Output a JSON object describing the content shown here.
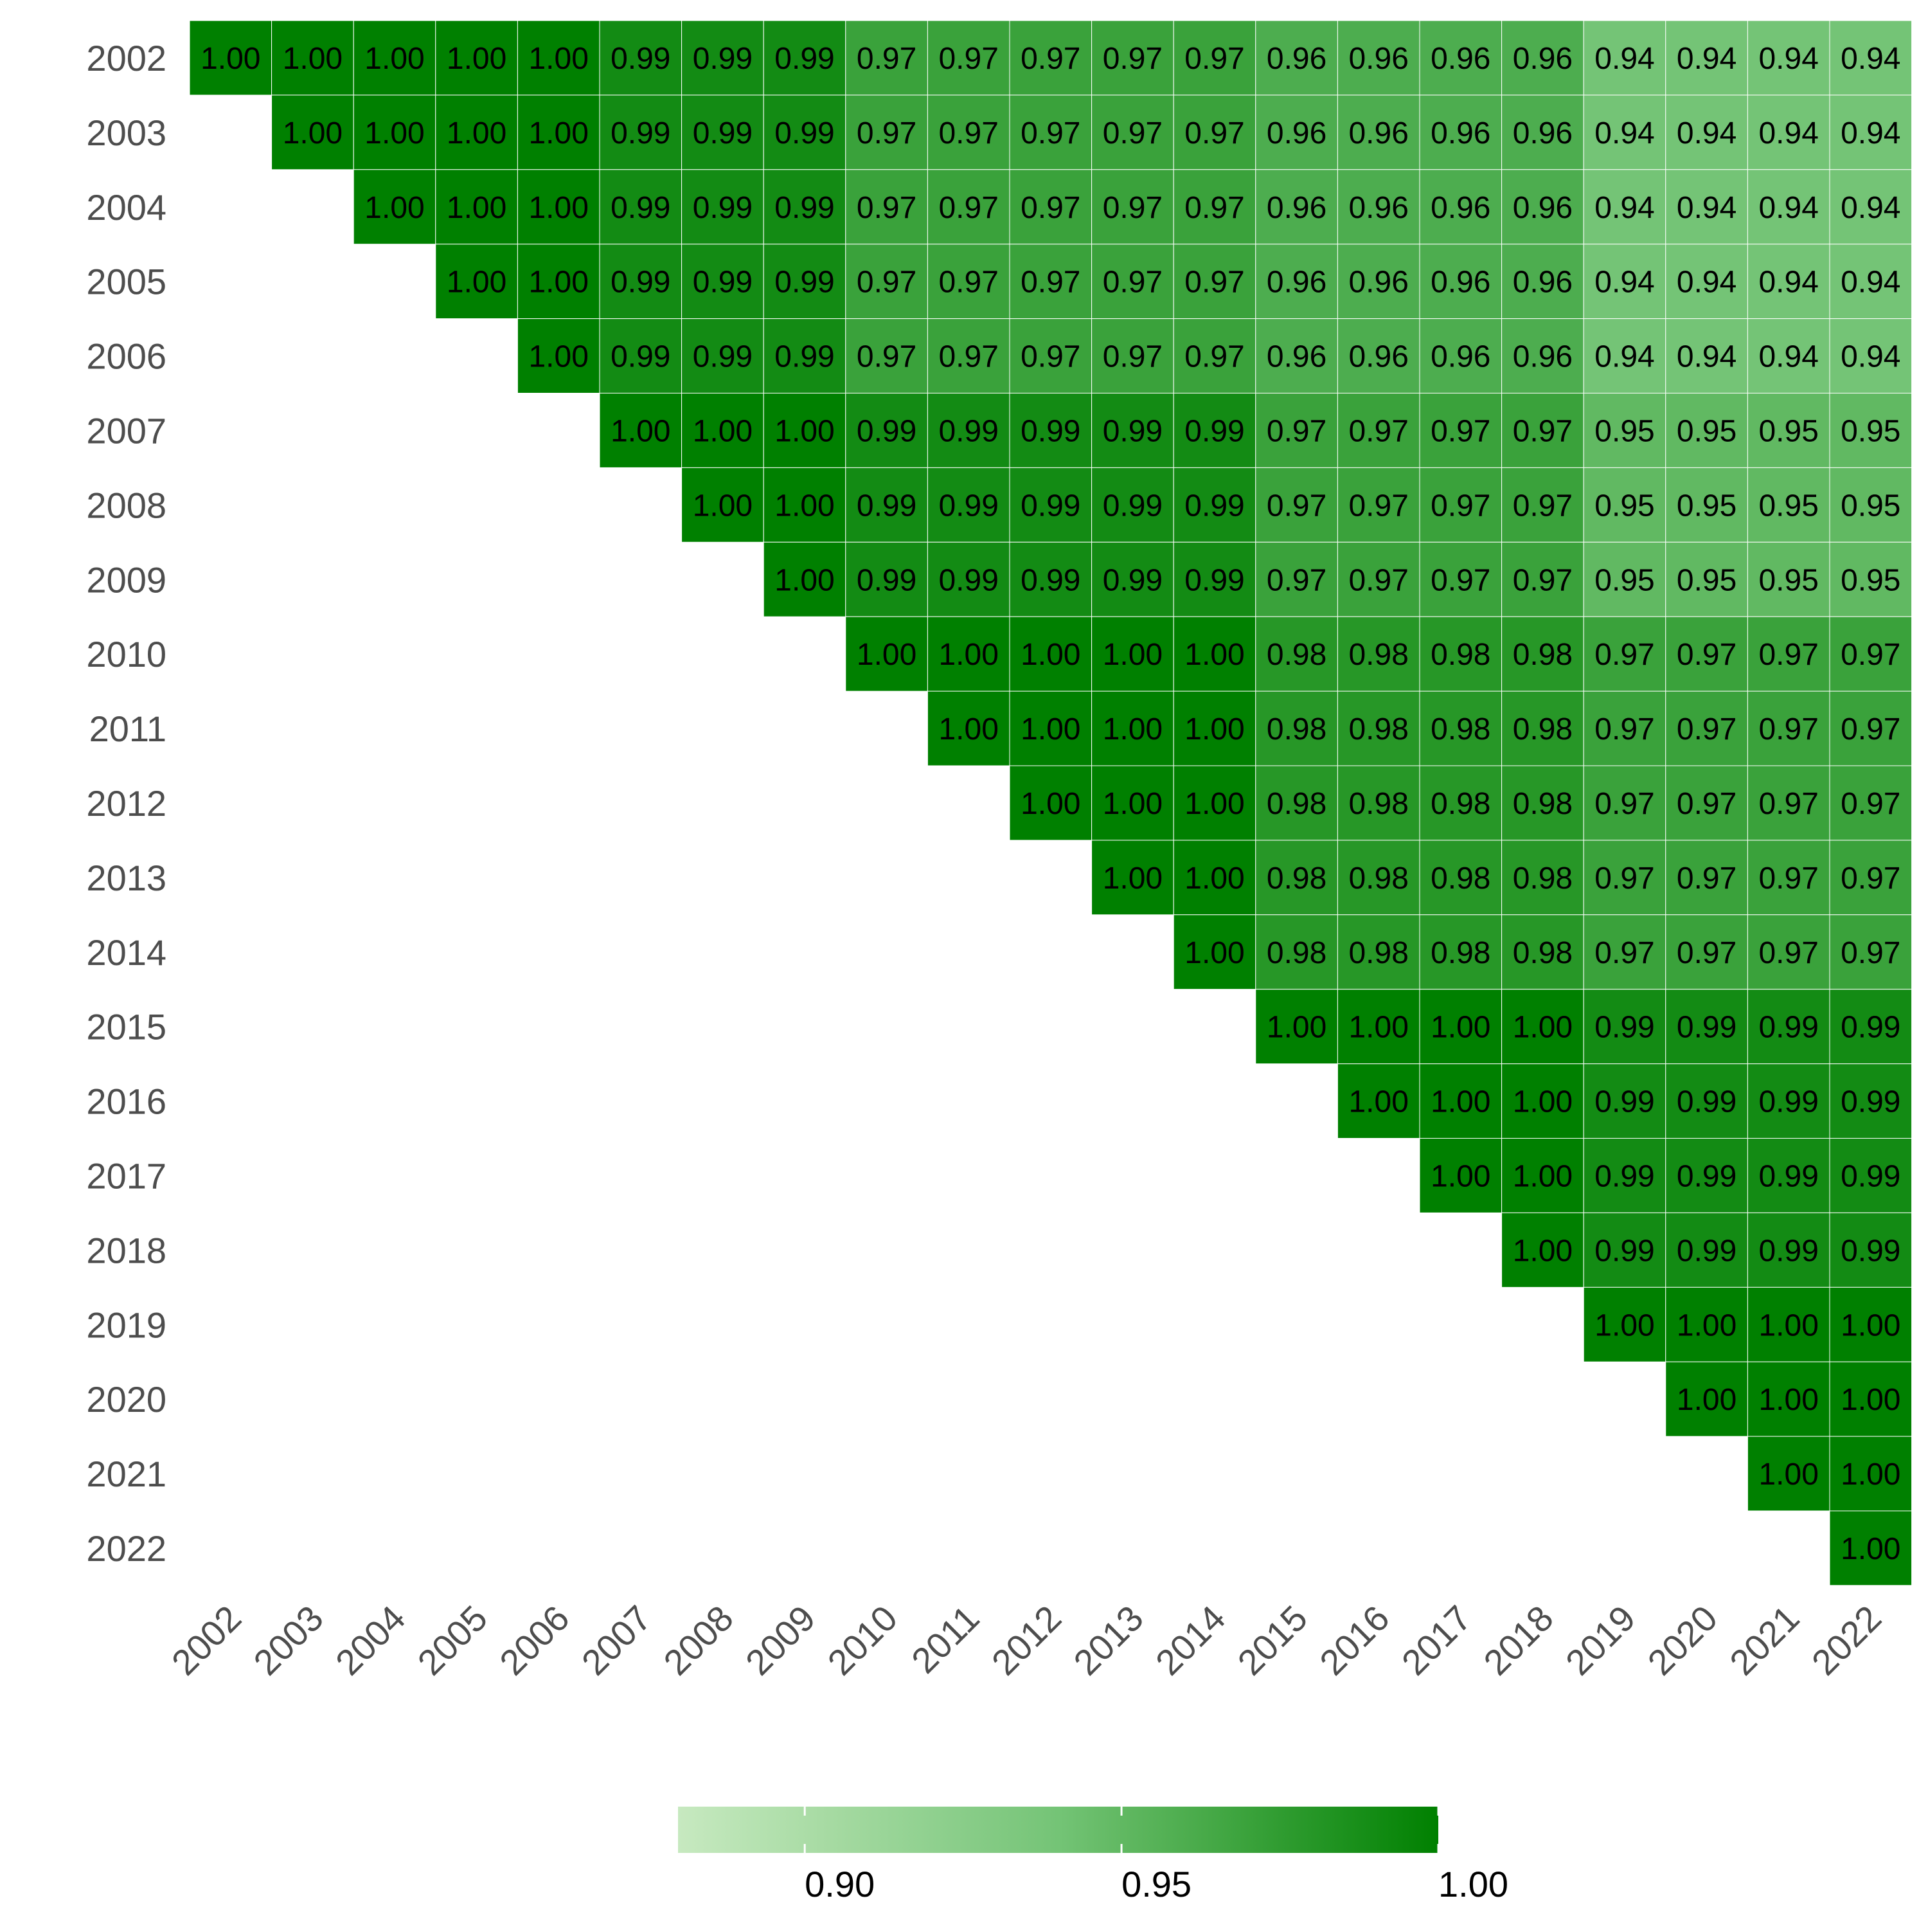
{
  "chart_data": {
    "type": "heatmap",
    "title": "",
    "xlabel": "",
    "ylabel": "",
    "layout": "upper-triangle",
    "rows": [
      "2002",
      "2003",
      "2004",
      "2005",
      "2006",
      "2007",
      "2008",
      "2009",
      "2010",
      "2011",
      "2012",
      "2013",
      "2014",
      "2015",
      "2016",
      "2017",
      "2018",
      "2019",
      "2020",
      "2021",
      "2022"
    ],
    "columns": [
      "2002",
      "2003",
      "2004",
      "2005",
      "2006",
      "2007",
      "2008",
      "2009",
      "2010",
      "2011",
      "2012",
      "2013",
      "2014",
      "2015",
      "2016",
      "2017",
      "2018",
      "2019",
      "2020",
      "2021",
      "2022"
    ],
    "values": [
      [
        "1.00",
        "1.00",
        "1.00",
        "1.00",
        "1.00",
        "0.99",
        "0.99",
        "0.99",
        "0.97",
        "0.97",
        "0.97",
        "0.97",
        "0.97",
        "0.96",
        "0.96",
        "0.96",
        "0.96",
        "0.94",
        "0.94",
        "0.94",
        "0.94"
      ],
      [
        "1.00",
        "1.00",
        "1.00",
        "1.00",
        "0.99",
        "0.99",
        "0.99",
        "0.97",
        "0.97",
        "0.97",
        "0.97",
        "0.97",
        "0.96",
        "0.96",
        "0.96",
        "0.96",
        "0.94",
        "0.94",
        "0.94",
        "0.94"
      ],
      [
        "1.00",
        "1.00",
        "1.00",
        "0.99",
        "0.99",
        "0.99",
        "0.97",
        "0.97",
        "0.97",
        "0.97",
        "0.97",
        "0.96",
        "0.96",
        "0.96",
        "0.96",
        "0.94",
        "0.94",
        "0.94",
        "0.94"
      ],
      [
        "1.00",
        "1.00",
        "0.99",
        "0.99",
        "0.99",
        "0.97",
        "0.97",
        "0.97",
        "0.97",
        "0.97",
        "0.96",
        "0.96",
        "0.96",
        "0.96",
        "0.94",
        "0.94",
        "0.94",
        "0.94"
      ],
      [
        "1.00",
        "0.99",
        "0.99",
        "0.99",
        "0.97",
        "0.97",
        "0.97",
        "0.97",
        "0.97",
        "0.96",
        "0.96",
        "0.96",
        "0.96",
        "0.94",
        "0.94",
        "0.94",
        "0.94"
      ],
      [
        "1.00",
        "1.00",
        "1.00",
        "0.99",
        "0.99",
        "0.99",
        "0.99",
        "0.99",
        "0.97",
        "0.97",
        "0.97",
        "0.97",
        "0.95",
        "0.95",
        "0.95",
        "0.95"
      ],
      [
        "1.00",
        "1.00",
        "0.99",
        "0.99",
        "0.99",
        "0.99",
        "0.99",
        "0.97",
        "0.97",
        "0.97",
        "0.97",
        "0.95",
        "0.95",
        "0.95",
        "0.95"
      ],
      [
        "1.00",
        "0.99",
        "0.99",
        "0.99",
        "0.99",
        "0.99",
        "0.97",
        "0.97",
        "0.97",
        "0.97",
        "0.95",
        "0.95",
        "0.95",
        "0.95"
      ],
      [
        "1.00",
        "1.00",
        "1.00",
        "1.00",
        "1.00",
        "0.98",
        "0.98",
        "0.98",
        "0.98",
        "0.97",
        "0.97",
        "0.97",
        "0.97"
      ],
      [
        "1.00",
        "1.00",
        "1.00",
        "1.00",
        "0.98",
        "0.98",
        "0.98",
        "0.98",
        "0.97",
        "0.97",
        "0.97",
        "0.97"
      ],
      [
        "1.00",
        "1.00",
        "1.00",
        "0.98",
        "0.98",
        "0.98",
        "0.98",
        "0.97",
        "0.97",
        "0.97",
        "0.97"
      ],
      [
        "1.00",
        "1.00",
        "0.98",
        "0.98",
        "0.98",
        "0.98",
        "0.97",
        "0.97",
        "0.97",
        "0.97"
      ],
      [
        "1.00",
        "0.98",
        "0.98",
        "0.98",
        "0.98",
        "0.97",
        "0.97",
        "0.97",
        "0.97"
      ],
      [
        "1.00",
        "1.00",
        "1.00",
        "1.00",
        "0.99",
        "0.99",
        "0.99",
        "0.99"
      ],
      [
        "1.00",
        "1.00",
        "1.00",
        "0.99",
        "0.99",
        "0.99",
        "0.99"
      ],
      [
        "1.00",
        "1.00",
        "0.99",
        "0.99",
        "0.99",
        "0.99"
      ],
      [
        "1.00",
        "0.99",
        "0.99",
        "0.99",
        "0.99"
      ],
      [
        "1.00",
        "1.00",
        "1.00",
        "1.00"
      ],
      [
        "1.00",
        "1.00",
        "1.00"
      ],
      [
        "1.00",
        "1.00"
      ],
      [
        "1.00"
      ]
    ],
    "color_scale": {
      "domain": [
        0.88,
        1.0
      ],
      "colors": [
        "#c7e9c0",
        "#74c476",
        "#008000"
      ],
      "ticks": [
        "0.90",
        "0.95",
        "1.00"
      ],
      "tick_values": [
        0.9,
        0.95,
        1.0
      ]
    },
    "legend_position": "bottom",
    "grid": false
  }
}
